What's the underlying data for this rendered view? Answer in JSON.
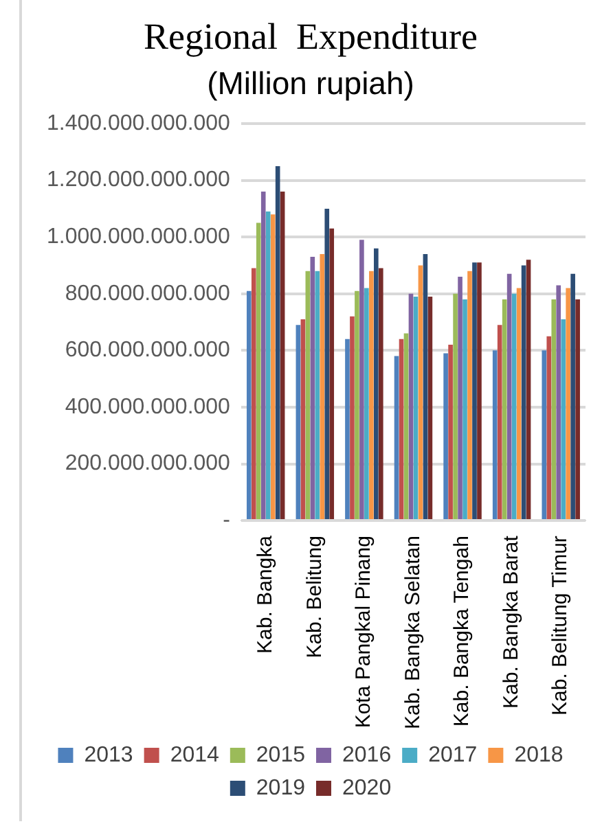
{
  "chart_data": {
    "type": "bar",
    "title": "Regional  Expenditure",
    "subtitle": "(Million rupiah)",
    "categories": [
      "Kab. Bangka",
      "Kab. Belitung",
      "Kota Pangkal Pinang",
      "Kab. Bangka Selatan",
      "Kab. Bangka Tengah",
      "Kab. Bangka Barat",
      "Kab. Belitung Timur"
    ],
    "series": [
      {
        "name": "2013",
        "color": "#4f81bd",
        "values": [
          810000000000,
          690000000000,
          640000000000,
          580000000000,
          590000000000,
          600000000000,
          600000000000
        ]
      },
      {
        "name": "2014",
        "color": "#c0504d",
        "values": [
          890000000000,
          710000000000,
          720000000000,
          640000000000,
          620000000000,
          690000000000,
          650000000000
        ]
      },
      {
        "name": "2015",
        "color": "#9bbb59",
        "values": [
          1050000000000,
          880000000000,
          810000000000,
          660000000000,
          800000000000,
          780000000000,
          780000000000
        ]
      },
      {
        "name": "2016",
        "color": "#8064a2",
        "values": [
          1160000000000,
          930000000000,
          990000000000,
          800000000000,
          860000000000,
          870000000000,
          830000000000
        ]
      },
      {
        "name": "2017",
        "color": "#4bacc6",
        "values": [
          1090000000000,
          880000000000,
          820000000000,
          790000000000,
          780000000000,
          800000000000,
          710000000000
        ]
      },
      {
        "name": "2018",
        "color": "#f79646",
        "values": [
          1080000000000,
          940000000000,
          880000000000,
          900000000000,
          880000000000,
          820000000000,
          820000000000
        ]
      },
      {
        "name": "2019",
        "color": "#2c4d75",
        "values": [
          1250000000000,
          1100000000000,
          960000000000,
          940000000000,
          910000000000,
          900000000000,
          870000000000
        ]
      },
      {
        "name": "2020",
        "color": "#772c2a",
        "values": [
          1160000000000,
          1030000000000,
          890000000000,
          790000000000,
          910000000000,
          920000000000,
          780000000000
        ]
      }
    ],
    "ylim": [
      0,
      1400000000000
    ],
    "yticks": [
      {
        "value": 0,
        "label": "-"
      },
      {
        "value": 200000000000,
        "label": "200.000.000.000"
      },
      {
        "value": 400000000000,
        "label": "400.000.000.000"
      },
      {
        "value": 600000000000,
        "label": "600.000.000.000"
      },
      {
        "value": 800000000000,
        "label": "800.000.000.000"
      },
      {
        "value": 1000000000000,
        "label": "1.000.000.000.000"
      },
      {
        "value": 1200000000000,
        "label": "1.200.000.000.000"
      },
      {
        "value": 1400000000000,
        "label": "1.400.000.000.000"
      }
    ],
    "grid": "y",
    "legend": "bottom"
  }
}
